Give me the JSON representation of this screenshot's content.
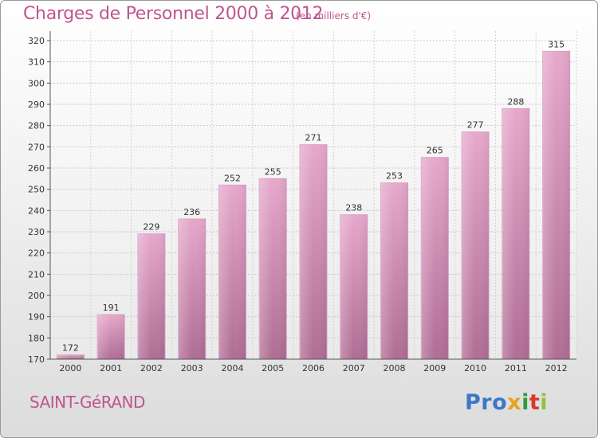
{
  "header": {
    "title": "Charges de Personnel 2000 à 2012",
    "unit": "(en milliers d'€)"
  },
  "footer": {
    "commune": "SAINT-GéRAND",
    "logo": [
      "Pro",
      "x",
      "i",
      "t",
      "i"
    ]
  },
  "colors": {
    "bar_top": "#e6a8cc",
    "bar_bottom": "#b06d94",
    "title": "#c0558f"
  },
  "chart_data": {
    "type": "bar",
    "categories": [
      "2000",
      "2001",
      "2002",
      "2003",
      "2004",
      "2005",
      "2006",
      "2007",
      "2008",
      "2009",
      "2010",
      "2011",
      "2012"
    ],
    "values": [
      172,
      191,
      229,
      236,
      252,
      255,
      271,
      238,
      253,
      265,
      277,
      288,
      315
    ],
    "yticks": [
      170,
      180,
      190,
      200,
      210,
      220,
      230,
      240,
      250,
      260,
      270,
      280,
      290,
      300,
      310,
      320
    ],
    "ylim": [
      170,
      320
    ],
    "grid": true
  }
}
